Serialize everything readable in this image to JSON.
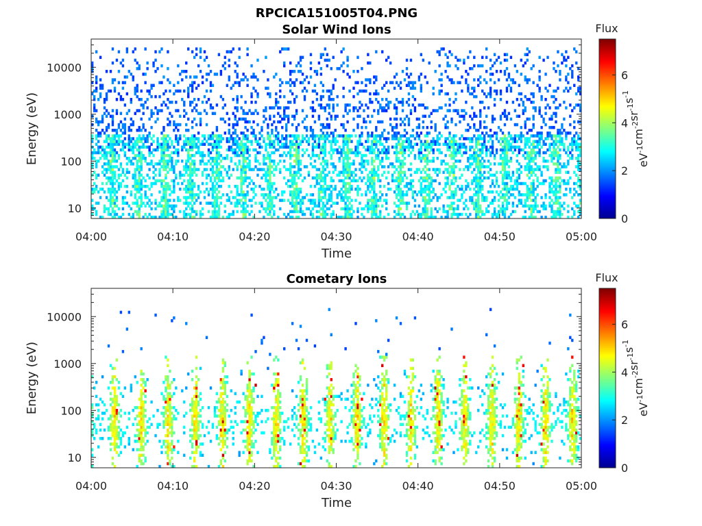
{
  "figure": {
    "title": "RPCICA151005T04.PNG"
  },
  "colormap": [
    "#00008f",
    "#0000ff",
    "#0080ff",
    "#00ffff",
    "#80ff80",
    "#ffff00",
    "#ff8000",
    "#ff0000",
    "#800000"
  ],
  "chart_data": [
    {
      "type": "heatmap",
      "title": "Solar Wind Ions",
      "xlabel": "Time",
      "ylabel": "Energy (eV)",
      "x_ticks": [
        "04:00",
        "04:10",
        "04:20",
        "04:30",
        "04:40",
        "04:50",
        "05:00"
      ],
      "x_range": [
        "04:00",
        "05:00"
      ],
      "y_scale": "log",
      "y_range": [
        6,
        40000
      ],
      "y_ticks": [
        10,
        100,
        1000,
        10000
      ],
      "y_tick_labels": [
        "10",
        "100",
        "1000",
        "10000"
      ],
      "colorbar": {
        "title": "Flux",
        "label": "eV-1cm-2sr-1s-1",
        "label_parts": [
          [
            "eV",
            "-1"
          ],
          [
            "cm",
            "-2"
          ],
          [
            "sr",
            "-1"
          ],
          [
            "s",
            "-1"
          ]
        ],
        "range": [
          0,
          7.5
        ],
        "ticks": [
          0,
          2,
          4,
          6
        ]
      },
      "pattern": {
        "noise_upper_energy": 25000,
        "noise_lower_energy": 150,
        "band_energy": [
          6,
          350
        ],
        "burst_period_min": 3.2,
        "burst_phase_min": 1.0,
        "typical_flux": [
          1.5,
          3.5
        ],
        "peak_flux": 4.2
      }
    },
    {
      "type": "heatmap",
      "title": "Cometary Ions",
      "xlabel": "Time",
      "ylabel": "Energy (eV)",
      "x_ticks": [
        "04:00",
        "04:10",
        "04:20",
        "04:30",
        "04:40",
        "04:50",
        "05:00"
      ],
      "x_range": [
        "04:00",
        "05:00"
      ],
      "y_scale": "log",
      "y_range": [
        6,
        40000
      ],
      "y_ticks": [
        10,
        100,
        1000,
        10000
      ],
      "y_tick_labels": [
        "10",
        "100",
        "1000",
        "10000"
      ],
      "colorbar": {
        "title": "Flux",
        "label": "eV-1cm-2sr-1s-1",
        "label_parts": [
          [
            "eV",
            "-1"
          ],
          [
            "cm",
            "-2"
          ],
          [
            "sr",
            "-1"
          ],
          [
            "s",
            "-1"
          ]
        ],
        "range": [
          0,
          7.5
        ],
        "ticks": [
          0,
          2,
          4,
          6
        ]
      },
      "pattern": {
        "burst_period_min": 3.3,
        "burst_phase_min": 1.2,
        "burst_energy": [
          6,
          1500
        ],
        "band_peak_energy": 60,
        "typical_flux": [
          3.0,
          5.5
        ],
        "peak_flux": 7.0,
        "sparse_upper_energy": 15000
      }
    }
  ]
}
